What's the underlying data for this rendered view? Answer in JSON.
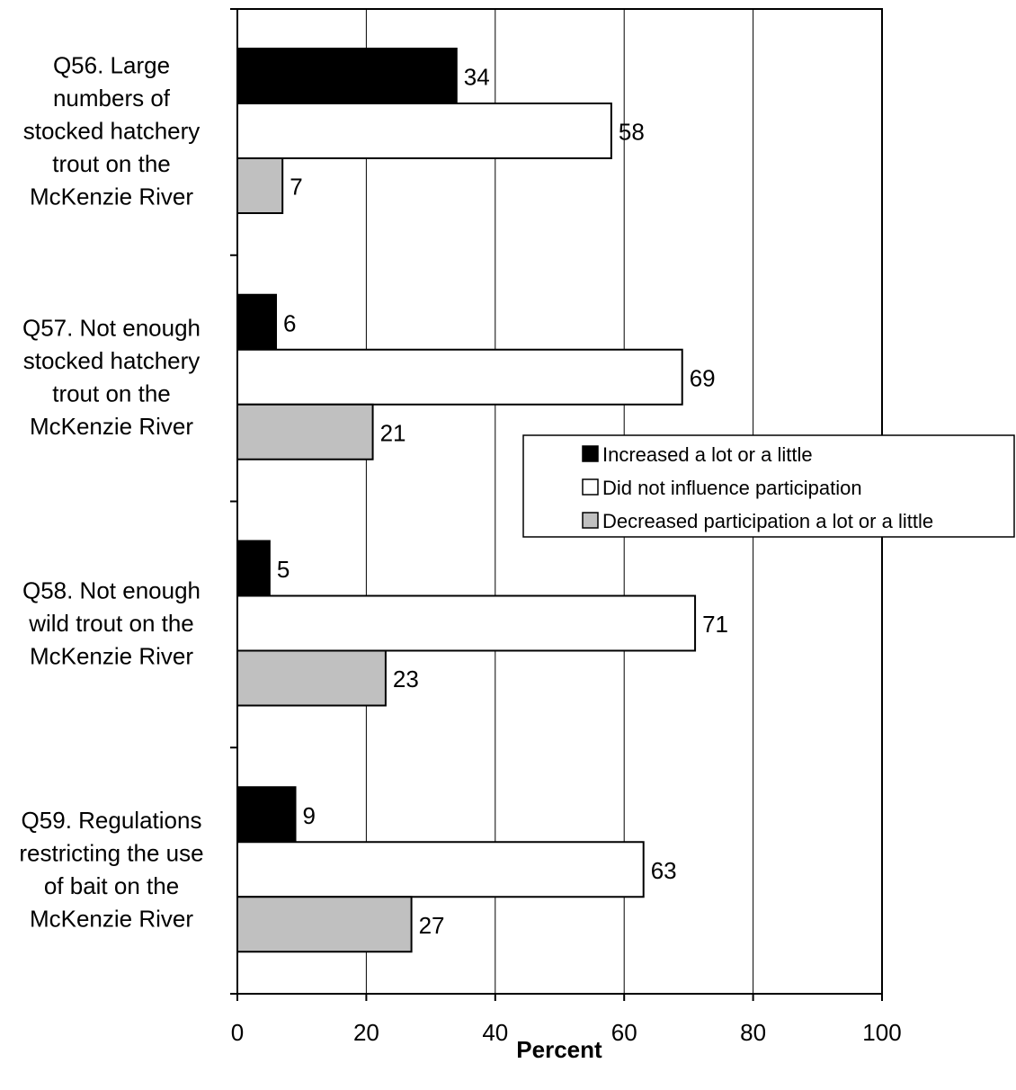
{
  "chart_data": {
    "type": "bar",
    "orientation": "horizontal",
    "categories": [
      [
        "Q56. Large",
        "numbers of",
        "stocked hatchery",
        "trout on the",
        "McKenzie River"
      ],
      [
        "Q57. Not enough",
        "stocked hatchery",
        "trout on the",
        "McKenzie River"
      ],
      [
        "Q58. Not enough",
        "wild trout on the",
        "McKenzie River"
      ],
      [
        "Q59. Regulations",
        "restricting the use",
        "of bait on the",
        "McKenzie River"
      ]
    ],
    "series": [
      {
        "name": "Increased a lot or a little",
        "color": "#000000",
        "values": [
          34,
          6,
          5,
          9
        ]
      },
      {
        "name": "Did not influence participation",
        "color": "#ffffff",
        "values": [
          58,
          69,
          71,
          63
        ]
      },
      {
        "name": "Decreased participation a lot or a little",
        "color": "#c0c0c0",
        "values": [
          7,
          21,
          23,
          27
        ]
      }
    ],
    "xlabel": "Percent",
    "xlim": [
      0,
      100
    ],
    "xticks": [
      0,
      20,
      40,
      60,
      80,
      100
    ],
    "grid": true,
    "legend_position": "right"
  }
}
